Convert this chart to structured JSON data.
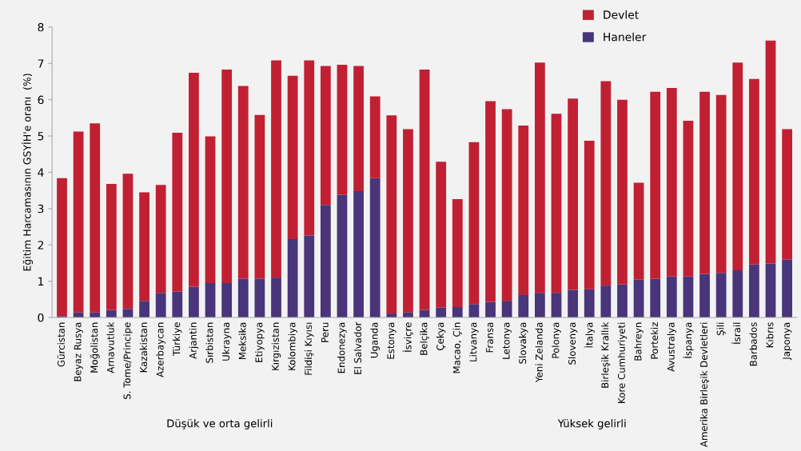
{
  "chart_data": {
    "type": "bar",
    "stacked": true,
    "ylabel": "Eğitim Harcamasının GSYİH'e oranı  (%)",
    "categories": [
      "Gürcistan",
      "Beyaz Rusya",
      "Moğolistan",
      "Arnavutluk",
      "S. Tome/Principe",
      "Kazakistan",
      "Azerbaycan",
      "Türkiye",
      "Arjantin",
      "Sırbistan",
      "Ukrayna",
      "Meksika",
      "Etiyopya",
      "Kırgızistan",
      "Kolombiya",
      "Fildişi Kıyısı",
      "Peru",
      "Endonezya",
      "El Salvador",
      "Uganda",
      "Estonya",
      "İsviçre",
      "Belçika",
      "Çekya",
      "Macao, Çin",
      "Litvanya",
      "Fransa",
      "Letonya",
      "Slovakya",
      "Yeni Zelanda",
      "Polonya",
      "Slovenya",
      "İtalya",
      "Birleşik Krallık",
      "Kore Cumhuriyeti",
      "Bahreyn",
      "Portekiz",
      "Avustralya",
      "İspanya",
      "Amerika Birleşik Devletleri",
      "Şili",
      "İsrail",
      "Barbados",
      "Kıbrıs",
      "Japonya"
    ],
    "series": [
      {
        "name": "Haneler",
        "color": "#48357a",
        "values": [
          0.04,
          0.14,
          0.14,
          0.21,
          0.24,
          0.46,
          0.68,
          0.71,
          0.85,
          0.95,
          0.95,
          1.07,
          1.07,
          1.1,
          2.16,
          2.26,
          3.1,
          3.38,
          3.48,
          3.84,
          0.11,
          0.14,
          0.21,
          0.27,
          0.29,
          0.37,
          0.43,
          0.46,
          0.62,
          0.68,
          0.68,
          0.76,
          0.78,
          0.88,
          0.91,
          1.04,
          1.07,
          1.13,
          1.13,
          1.2,
          1.23,
          1.3,
          1.46,
          1.49,
          1.59
        ]
      },
      {
        "name": "Devlet",
        "color": "#c12033",
        "values": [
          3.8,
          4.98,
          5.21,
          3.47,
          3.72,
          2.99,
          2.97,
          4.38,
          5.89,
          4.04,
          5.88,
          5.31,
          4.51,
          5.98,
          4.5,
          4.82,
          3.83,
          3.58,
          3.45,
          2.25,
          5.46,
          5.05,
          6.62,
          4.02,
          2.97,
          4.46,
          5.53,
          5.28,
          4.67,
          6.34,
          4.93,
          5.27,
          4.09,
          5.63,
          5.09,
          2.67,
          5.15,
          5.19,
          4.29,
          5.02,
          4.9,
          5.72,
          5.11,
          6.14,
          3.6
        ]
      }
    ],
    "ylim": [
      0,
      8
    ],
    "yticks": [
      0,
      1,
      2,
      3,
      4,
      5,
      6,
      7,
      8
    ],
    "grid": false,
    "legend": "top",
    "annotations": [
      "Düşük ve orta gelirli",
      "Yüksek gelirli"
    ]
  }
}
